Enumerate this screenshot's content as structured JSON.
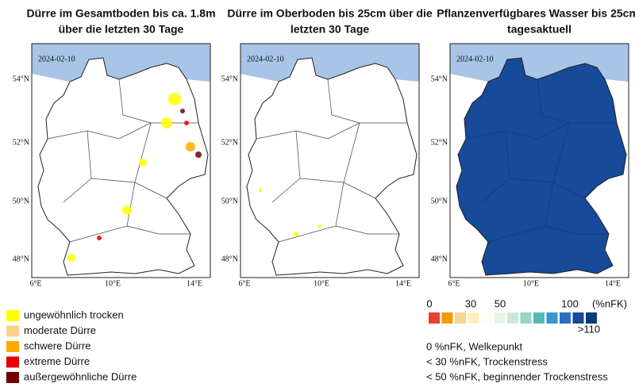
{
  "panels": [
    {
      "title": [
        "Dürre im Gesamtboden bis ca. 1.8m",
        "über die letzten 30 Tage"
      ],
      "date": "2024-02-10",
      "lat_labels": [
        "54°N",
        "52°N",
        "50°N",
        "48°N"
      ],
      "lon_labels": [
        "6°E",
        "10°E",
        "14°E"
      ]
    },
    {
      "title": [
        "Dürre im Oberboden bis 25cm über die",
        "letzten 30 Tage"
      ],
      "date": "2024-02-10",
      "lat_labels": [
        "54°N",
        "52°N",
        "50°N",
        "48°N"
      ],
      "lon_labels": [
        "6°E",
        "10°E",
        "14°E"
      ]
    },
    {
      "title": [
        "Pflanzenverfügbares Wasser bis 25cm,",
        "tagesaktuell"
      ],
      "date": "2024-02-10",
      "lat_labels": [
        "54°N",
        "52°N",
        "50°N",
        "48°N"
      ],
      "lon_labels": [
        "6°E",
        "10°E",
        "14°E"
      ]
    }
  ],
  "legend_left": [
    {
      "label": "ungewöhnlich trocken",
      "color": "#ffff00"
    },
    {
      "label": "moderate Dürre",
      "color": "#fcd28a"
    },
    {
      "label": "schwere Dürre",
      "color": "#ffaa00"
    },
    {
      "label": "extreme Dürre",
      "color": "#e60000"
    },
    {
      "label": "außergewöhnliche Dürre",
      "color": "#730000"
    }
  ],
  "legend_right": {
    "scale_labels": [
      "0",
      "30",
      "50",
      "100",
      "(%nFK)"
    ],
    "extra_label": ">110",
    "colors": [
      "#e8412b",
      "#f59b00",
      "#f8d58a",
      "#fcf0c0",
      "#fdfdf0",
      "#e8f4e4",
      "#c9e9d8",
      "#96d4c4",
      "#56b9b4",
      "#3a96cc",
      "#2a6fbf",
      "#174a98",
      "#0d3a78"
    ],
    "notes": [
      "0 %nFK, Welkepunkt",
      "< 30 %nFK, Trockenstress",
      "< 50 %nFK, beginnender Trockenstress"
    ]
  }
}
